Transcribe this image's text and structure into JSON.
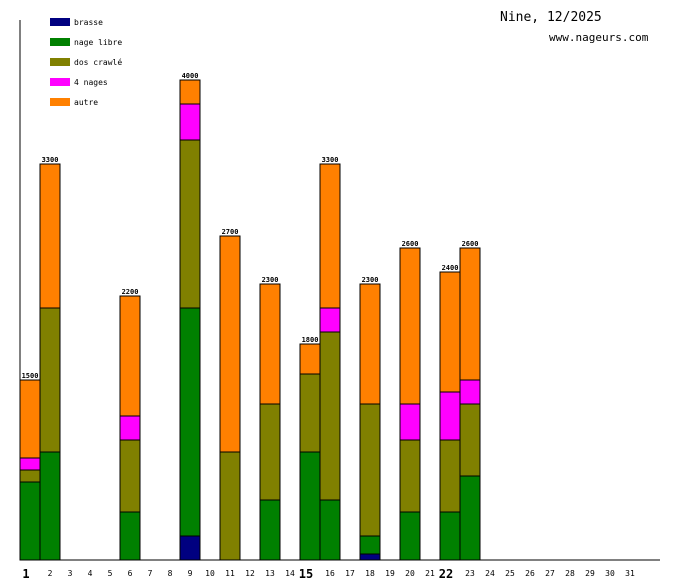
{
  "header": {
    "title": "Nine, 12/2025",
    "site": "www.nageurs.com"
  },
  "chart_data": {
    "type": "bar",
    "stacked": true,
    "title": "Nine, 12/2025",
    "xlabel": "",
    "ylabel": "",
    "ylim": [
      0,
      4000
    ],
    "categories": [
      "1",
      "2",
      "3",
      "4",
      "5",
      "6",
      "7",
      "8",
      "9",
      "10",
      "11",
      "12",
      "13",
      "14",
      "15",
      "16",
      "17",
      "18",
      "19",
      "20",
      "21",
      "22",
      "23",
      "24",
      "25",
      "26",
      "27",
      "28",
      "29",
      "30",
      "31"
    ],
    "emphasized_categories": [
      "1",
      "15",
      "22"
    ],
    "series": [
      {
        "name": "brasse",
        "color": "#000080",
        "values": [
          0,
          0,
          0,
          0,
          0,
          0,
          0,
          0,
          200,
          0,
          0,
          0,
          0,
          0,
          0,
          0,
          0,
          50,
          0,
          0,
          0,
          0,
          0,
          0,
          0,
          0,
          0,
          0,
          0,
          0,
          0
        ]
      },
      {
        "name": "nage libre",
        "color": "#008000",
        "values": [
          650,
          900,
          0,
          0,
          0,
          400,
          0,
          0,
          1900,
          0,
          0,
          0,
          500,
          0,
          900,
          500,
          0,
          150,
          0,
          400,
          0,
          400,
          700,
          0,
          0,
          0,
          0,
          0,
          0,
          0,
          0
        ]
      },
      {
        "name": "dos crawlé",
        "color": "#808000",
        "values": [
          100,
          1200,
          0,
          0,
          0,
          600,
          0,
          0,
          1400,
          0,
          900,
          0,
          800,
          0,
          650,
          1400,
          0,
          1100,
          0,
          600,
          0,
          600,
          600,
          0,
          0,
          0,
          0,
          0,
          0,
          0,
          0
        ]
      },
      {
        "name": "4 nages",
        "color": "#ff00ff",
        "values": [
          100,
          0,
          0,
          0,
          0,
          200,
          0,
          0,
          300,
          0,
          0,
          0,
          0,
          0,
          0,
          200,
          0,
          0,
          0,
          300,
          0,
          400,
          200,
          0,
          0,
          0,
          0,
          0,
          0,
          0,
          0
        ]
      },
      {
        "name": "autre",
        "color": "#ff8000",
        "values": [
          650,
          1200,
          0,
          0,
          0,
          1000,
          0,
          0,
          200,
          0,
          1800,
          0,
          1000,
          0,
          250,
          1200,
          0,
          1000,
          0,
          1300,
          0,
          1000,
          1100,
          0,
          0,
          0,
          0,
          0,
          0,
          0,
          0
        ]
      }
    ],
    "totals": [
      "1500",
      "3300",
      "",
      "",
      "",
      "2200",
      "",
      "",
      "4000",
      "",
      "2700",
      "",
      "2300",
      "",
      "1800",
      "3300",
      "",
      "2300",
      "",
      "2600",
      "",
      "2400",
      "2600",
      "",
      "",
      "",
      "",
      "",
      "",
      "",
      ""
    ],
    "legend": {
      "position": "top-left",
      "entries": [
        "brasse",
        "nage libre",
        "dos crawlé",
        "4 nages",
        "autre"
      ]
    }
  }
}
